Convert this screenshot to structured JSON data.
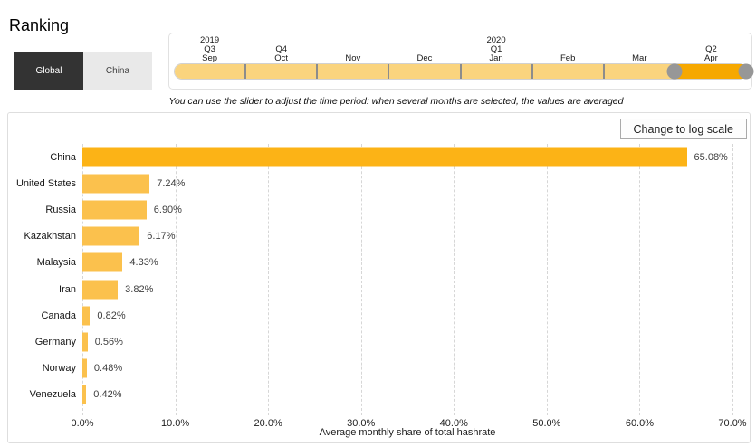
{
  "header": {
    "title": "Ranking"
  },
  "tabs": [
    {
      "label": "Global",
      "active": true
    },
    {
      "label": "China",
      "active": false
    }
  ],
  "slider": {
    "instruction": "You can use the slider to adjust the time period: when several months are selected, the values are averaged",
    "segments": [
      {
        "year": "2019",
        "quarter": "Q3",
        "month": "Sep",
        "selected": false
      },
      {
        "year": "",
        "quarter": "Q4",
        "month": "Oct",
        "selected": false
      },
      {
        "year": "",
        "quarter": "",
        "month": "Nov",
        "selected": false
      },
      {
        "year": "",
        "quarter": "",
        "month": "Dec",
        "selected": false
      },
      {
        "year": "2020",
        "quarter": "Q1",
        "month": "Jan",
        "selected": false
      },
      {
        "year": "",
        "quarter": "",
        "month": "Feb",
        "selected": false
      },
      {
        "year": "",
        "quarter": "",
        "month": "Mar",
        "selected": false
      },
      {
        "year": "",
        "quarter": "Q2",
        "month": "Apr",
        "selected": true
      }
    ],
    "colors": {
      "track": "#fad47e",
      "selected": "#f6a800",
      "handle": "#979797"
    }
  },
  "toolbar": {
    "log_scale_label": "Change to log scale"
  },
  "chart_data": {
    "type": "bar",
    "orientation": "horizontal",
    "categories": [
      "China",
      "United States",
      "Russia",
      "Kazakhstan",
      "Malaysia",
      "Iran",
      "Canada",
      "Germany",
      "Norway",
      "Venezuela"
    ],
    "values": [
      65.08,
      7.24,
      6.9,
      6.17,
      4.33,
      3.82,
      0.82,
      0.56,
      0.48,
      0.42
    ],
    "value_labels": [
      "65.08%",
      "7.24%",
      "6.90%",
      "6.17%",
      "4.33%",
      "3.82%",
      "0.82%",
      "0.56%",
      "0.48%",
      "0.42%"
    ],
    "xlabel": "Average monthly share of total hashrate",
    "xlim": [
      0,
      70
    ],
    "x_ticks": [
      0,
      10,
      20,
      30,
      40,
      50,
      60,
      70
    ],
    "x_tick_labels": [
      "0.0%",
      "10.0%",
      "20.0%",
      "30.0%",
      "40.0%",
      "50.0%",
      "60.0%",
      "70.0%"
    ],
    "grid": "dashed-vertical",
    "legend": "none",
    "bar_color": "#fbc14d",
    "highlight_color": "#fcb316",
    "highlighted_category": "China"
  }
}
